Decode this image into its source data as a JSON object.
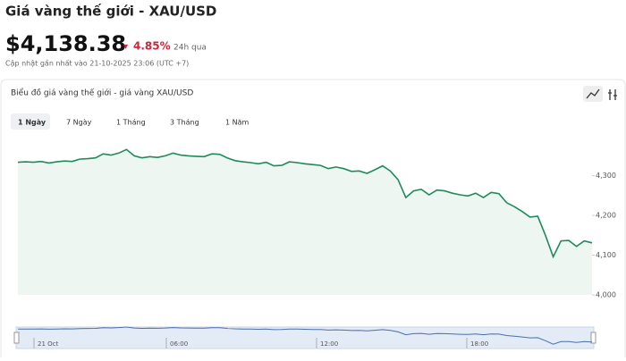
{
  "header": {
    "title": "Giá vàng thế giới - XAU/USD",
    "price": "$4,138.38",
    "change": "4.85%",
    "period": "24h qua",
    "updated": "Cập nhật gần nhất vào 21-10-2025 23:06 (UTC +7)"
  },
  "card": {
    "title": "Biểu đồ giá vàng thế giới - giá vàng XAU/USD",
    "tabs": [
      "1 Ngày",
      "7 Ngày",
      "1 Tháng",
      "3 Tháng",
      "1 Năm"
    ]
  },
  "chart_data": {
    "type": "line",
    "color": "#1f8a5b",
    "values": [
      4334,
      4335,
      4334,
      4336,
      4332,
      4335,
      4337,
      4336,
      4342,
      4343,
      4345,
      4355,
      4352,
      4357,
      4366,
      4350,
      4345,
      4348,
      4346,
      4350,
      4357,
      4352,
      4350,
      4349,
      4348,
      4355,
      4354,
      4345,
      4338,
      4335,
      4333,
      4330,
      4334,
      4325,
      4326,
      4335,
      4333,
      4330,
      4328,
      4326,
      4318,
      4322,
      4318,
      4311,
      4312,
      4306,
      4315,
      4325,
      4312,
      4290,
      4245,
      4262,
      4266,
      4252,
      4264,
      4262,
      4256,
      4252,
      4249,
      4256,
      4245,
      4258,
      4255,
      4232,
      4222,
      4210,
      4196,
      4198,
      4150,
      4096,
      4136,
      4137,
      4122,
      4136,
      4131
    ],
    "ylim": [
      4000,
      4450
    ],
    "yticks": [
      {
        "value": 4000,
        "label": "4,000"
      },
      {
        "value": 4100,
        "label": "4,100"
      },
      {
        "value": 4200,
        "label": "4,200"
      },
      {
        "value": 4300,
        "label": "4,300"
      }
    ],
    "navigator_labels": [
      "21 Oct",
      "06:00",
      "12:00",
      "18:00"
    ]
  }
}
